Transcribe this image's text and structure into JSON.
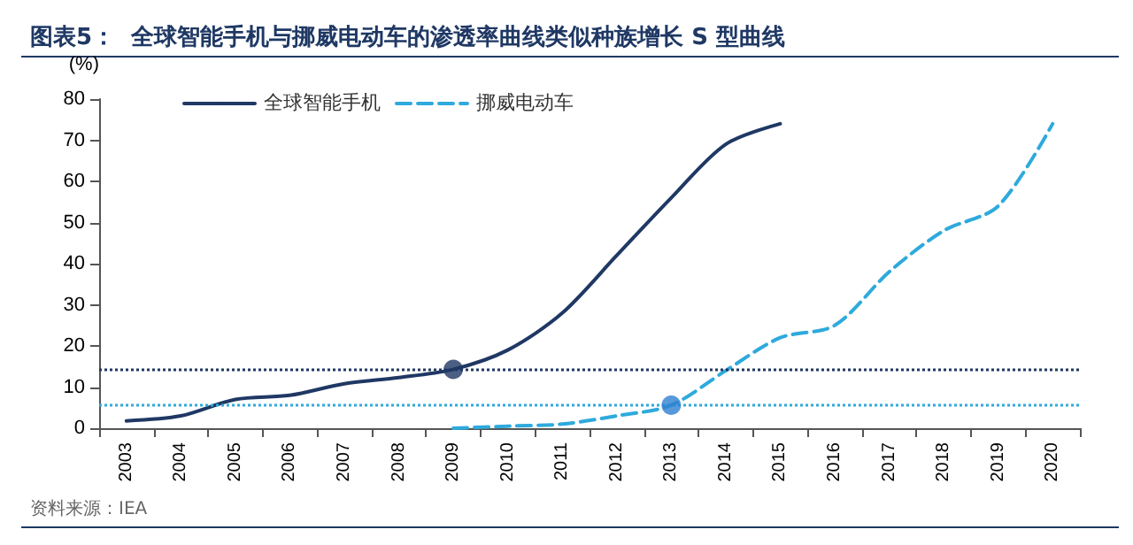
{
  "chart_data": {
    "type": "line",
    "title": "图表5：  全球智能手机与挪威电动车的渗透率曲线类似种族增长 S 型曲线",
    "ylabel": "(%)",
    "categories": [
      "2003",
      "2004",
      "2005",
      "2006",
      "2007",
      "2008",
      "2009",
      "2010",
      "2011",
      "2012",
      "2013",
      "2014",
      "2015",
      "2016",
      "2017",
      "2018",
      "2019",
      "2020"
    ],
    "series": [
      {
        "name": "全球智能手机",
        "color": "#1f3864",
        "line_style": "solid",
        "values": [
          1.8,
          3,
          7,
          8,
          10.8,
          12.3,
          14.3,
          19,
          28,
          42,
          56,
          69,
          74,
          null,
          null,
          null,
          null,
          null
        ]
      },
      {
        "name": "挪威电动车",
        "color": "#2eaadc",
        "line_style": "dashed",
        "values": [
          null,
          null,
          null,
          null,
          null,
          null,
          0,
          0.5,
          1,
          3,
          5.6,
          14,
          22,
          25,
          38,
          48,
          54,
          74
        ]
      },
      {
        "type": "scatter",
        "marker": "circle",
        "color": "#1f3864",
        "values": [
          null,
          null,
          null,
          null,
          null,
          null,
          14.3,
          null,
          null,
          null,
          null,
          null,
          null,
          null,
          null,
          null,
          null,
          null
        ]
      },
      {
        "type": "scatter",
        "marker": "circle",
        "color": "#2e7fd0",
        "values": [
          null,
          null,
          null,
          null,
          null,
          null,
          null,
          null,
          null,
          null,
          5.6,
          null,
          null,
          null,
          null,
          null,
          null,
          null
        ]
      }
    ],
    "ylim": [
      0,
      80
    ],
    "yticks": [
      0,
      10,
      20,
      30,
      40,
      50,
      60,
      70,
      80
    ],
    "grid": false,
    "legend": "top left",
    "marker": "none",
    "ref_lines": [
      {
        "axis": "y",
        "value": 14.3,
        "color": "#1f3864",
        "line_style": "dotted"
      },
      {
        "axis": "y",
        "value": 5.6,
        "color": "#2eaadc",
        "line_style": "dotted"
      }
    ],
    "annotations": [
      "资料来源：IEA"
    ]
  }
}
